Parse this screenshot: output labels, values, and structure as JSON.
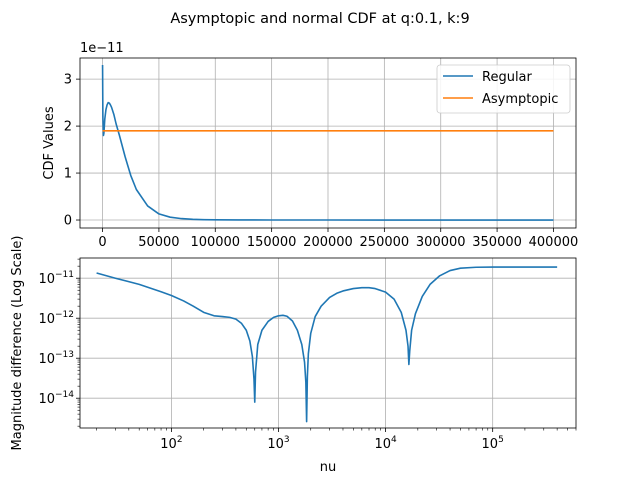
{
  "figure_title": "Asymptopic and normal CDF at q:0.1, k:9",
  "colors": {
    "regular": "#1f77b4",
    "asymptopic": "#ff7f0e",
    "grid": "#b0b0b0"
  },
  "chart_data": [
    {
      "type": "line",
      "title": "",
      "xlabel": "",
      "ylabel": "CDF Values",
      "y_offset_label": "1e−11",
      "xlim": [
        -20000,
        420000
      ],
      "ylim": [
        -0.17,
        3.45
      ],
      "y_scale_factor": 1e-11,
      "grid": true,
      "legend": "top-right",
      "xticks": [
        0,
        50000,
        100000,
        150000,
        200000,
        250000,
        300000,
        350000,
        400000
      ],
      "xtick_labels": [
        "0",
        "50000",
        "100000",
        "150000",
        "200000",
        "250000",
        "300000",
        "350000",
        "400000"
      ],
      "yticks": [
        0,
        1,
        2,
        3
      ],
      "ytick_labels": [
        "0",
        "1",
        "2",
        "3"
      ],
      "series": [
        {
          "name": "Regular",
          "color": "#1f77b4",
          "x": [
            20,
            300,
            800,
            1200,
            1600,
            2000,
            3000,
            4000,
            5000,
            6000,
            7000,
            8000,
            10000,
            12000,
            15000,
            20000,
            25000,
            30000,
            40000,
            50000,
            60000,
            70000,
            80000,
            90000,
            100000,
            120000,
            150000,
            200000,
            250000,
            300000,
            350000,
            400000
          ],
          "y": [
            3.3,
            2.2,
            1.8,
            1.85,
            2.0,
            2.15,
            2.35,
            2.45,
            2.5,
            2.49,
            2.45,
            2.4,
            2.25,
            2.05,
            1.8,
            1.35,
            0.95,
            0.65,
            0.3,
            0.13,
            0.06,
            0.03,
            0.015,
            0.008,
            0.004,
            0.0015,
            0.0005,
            0.0001,
            2e-05,
            0.0,
            0.0,
            0.0
          ]
        },
        {
          "name": "Asymptopic",
          "color": "#ff7f0e",
          "x": [
            20,
            400000
          ],
          "y": [
            1.9,
            1.9
          ]
        }
      ]
    },
    {
      "type": "line",
      "title": "",
      "xlabel": "nu",
      "ylabel": "Magnitude difference (Log Scale)",
      "xscale": "log",
      "yscale": "log",
      "xlim": [
        14,
        600000
      ],
      "ylim": [
        1.8e-15,
        3.2e-11
      ],
      "grid": true,
      "xticks": [
        100,
        1000,
        10000,
        100000
      ],
      "xtick_labels": [
        {
          "base": "10",
          "exp": "2"
        },
        {
          "base": "10",
          "exp": "3"
        },
        {
          "base": "10",
          "exp": "4"
        },
        {
          "base": "10",
          "exp": "5"
        }
      ],
      "yticks": [
        1e-14,
        1e-13,
        1e-12,
        1e-11
      ],
      "ytick_labels": [
        {
          "base": "10",
          "exp": "−14"
        },
        {
          "base": "10",
          "exp": "−13"
        },
        {
          "base": "10",
          "exp": "−12"
        },
        {
          "base": "10",
          "exp": "−11"
        }
      ],
      "series": [
        {
          "name": "",
          "color": "#1f77b4",
          "x": [
            20,
            30,
            50,
            80,
            100,
            130,
            160,
            200,
            250,
            300,
            350,
            400,
            450,
            500,
            540,
            570,
            590,
            600,
            610,
            640,
            700,
            800,
            900,
            1000,
            1100,
            1200,
            1350,
            1500,
            1650,
            1750,
            1800,
            1830,
            1860,
            1900,
            2000,
            2200,
            2500,
            3000,
            3500,
            4000,
            5000,
            6000,
            7000,
            8000,
            10000,
            12000,
            14000,
            15500,
            16200,
            16500,
            16800,
            17500,
            19000,
            22000,
            26000,
            32000,
            40000,
            50000,
            70000,
            100000,
            150000,
            200000,
            300000,
            400000
          ],
          "y": [
            1.35e-11,
            1e-11,
            7e-12,
            4.6e-12,
            3.7e-12,
            2.7e-12,
            2e-12,
            1.4e-12,
            1.15e-12,
            1.1e-12,
            1.05e-12,
            9.5e-13,
            7.5e-13,
            5e-13,
            2.7e-13,
            1.1e-13,
            3e-14,
            8e-15,
            4.5e-14,
            2.2e-13,
            5e-13,
            8.3e-13,
            1.05e-12,
            1.15e-12,
            1.18e-12,
            1.12e-12,
            8.5e-13,
            5e-13,
            2.2e-13,
            8e-14,
            2.5e-14,
            2.6e-15,
            3.5e-14,
            1.3e-13,
            4.2e-13,
            1.1e-12,
            2e-12,
            3.3e-12,
            4.2e-12,
            4.8e-12,
            5.5e-12,
            5.8e-12,
            5.8e-12,
            5.5e-12,
            4.5e-12,
            3e-12,
            1.4e-12,
            5e-13,
            2e-13,
            7e-14,
            1.5e-13,
            5e-13,
            1.3e-12,
            3.5e-12,
            7e-12,
            1.15e-11,
            1.55e-11,
            1.78e-11,
            1.88e-11,
            1.9e-11,
            1.9e-11,
            1.9e-11,
            1.9e-11,
            1.9e-11
          ]
        }
      ]
    }
  ]
}
